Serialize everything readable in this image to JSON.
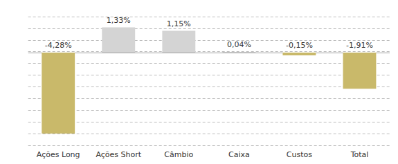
{
  "chart_data": {
    "type": "bar",
    "categories": [
      "Ações Long",
      "Ações Short",
      "Câmbio",
      "Caixa",
      "Custos",
      "Total"
    ],
    "values": [
      -4.28,
      1.33,
      1.15,
      0.04,
      -0.15,
      -1.91
    ],
    "value_labels": [
      "-4,28%",
      "1,33%",
      "1,15%",
      "0,04%",
      "-0,15%",
      "-1,91%"
    ],
    "colors": [
      "#C9B96A",
      "#D4D4D4",
      "#D4D4D4",
      "#D4D4D4",
      "#C9B96A",
      "#C9B96A"
    ],
    "ylim": [
      -4.9,
      1.9
    ],
    "yticks": [
      -4.9,
      -4.281818181818182,
      -3.663636363636364,
      -3.0454545454545454,
      -2.427272727272727,
      -1.809090909090909,
      -1.190909090909091,
      -0.5727272727272728,
      0.04545454545454541,
      0.6636363636363636,
      1.2818181818181817,
      1.9
    ],
    "grid": true,
    "data_labels": true,
    "tick_labels": "x"
  }
}
